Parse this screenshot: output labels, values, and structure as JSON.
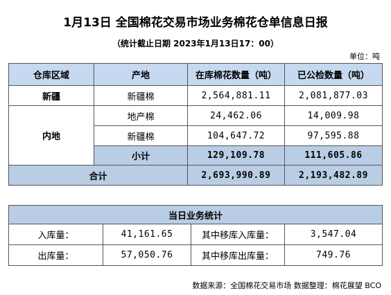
{
  "header": {
    "title": "1月13日 全国棉花交易市场业务棉花仓单信息日报",
    "subtitle": "（统计截止日期 2023年1月13日17：00）",
    "unit": "单位：吨"
  },
  "table": {
    "columns": [
      "仓库区域",
      "产地",
      "在库棉花数量（吨）",
      "已公检数量（吨）"
    ],
    "regions": [
      {
        "region": "新疆",
        "rows": [
          [
            "新疆棉",
            "2,564,881.11",
            "2,081,877.03"
          ]
        ]
      },
      {
        "region": "内地",
        "rows": [
          [
            "地产棉",
            "24,462.06",
            "14,009.98"
          ],
          [
            "新疆棉",
            "104,647.72",
            "97,595.88"
          ],
          [
            "小计",
            "129,109.78",
            "111,605.86"
          ]
        ]
      }
    ],
    "total": {
      "label": "合计",
      "values": [
        "2,693,990.89",
        "2,193,482.89"
      ]
    }
  },
  "daily": {
    "title": "当日业务统计",
    "rows": [
      [
        "入库量：",
        "41,161.65",
        "其中移库入库量：",
        "3,547.04"
      ],
      [
        "出库量：",
        "57,050.76",
        "其中移库出库量：",
        "749.76"
      ]
    ]
  },
  "footer": "数据来源：全国棉花交易市场 数据整理：棉花展望 BCO"
}
